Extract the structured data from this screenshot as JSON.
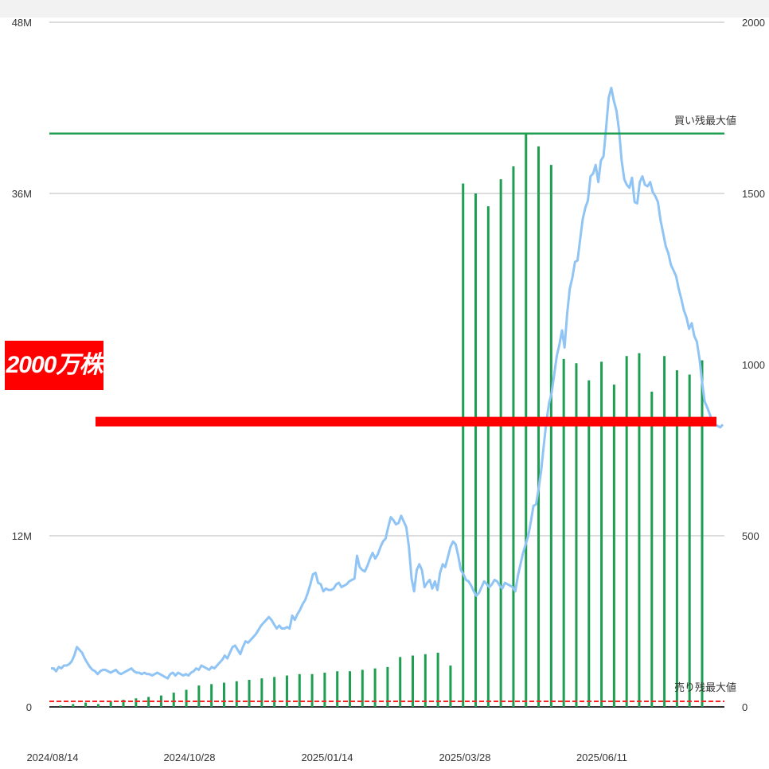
{
  "chart_data": {
    "type": "line",
    "x_ticks": [
      "2024/08/14",
      "2024/10/28",
      "2025/01/14",
      "2025/03/28",
      "2025/06/11"
    ],
    "y_left": {
      "ticks": [
        "0",
        "12M",
        "36M",
        "48M"
      ],
      "tick_values": [
        0,
        12,
        36,
        48
      ],
      "ylim": [
        0,
        48
      ],
      "unit": "M"
    },
    "y_right": {
      "ticks": [
        "0",
        "500",
        "1000",
        "1500",
        "2000"
      ],
      "tick_values": [
        0,
        500,
        1000,
        1500,
        2000
      ],
      "ylim": [
        0,
        2000
      ]
    },
    "grid": true,
    "annotations": {
      "buy_max_label": "買い残最大値",
      "sell_max_label": "売り残最大値",
      "highlight_label": "2000万株",
      "highlight_level_M": 20,
      "buy_max_level_M": 40.2
    },
    "series": [
      {
        "kind": "line",
        "color": "#90c4f4",
        "axis": "left",
        "values": [
          2.7,
          2.7,
          2.5,
          2.8,
          2.7,
          2.9,
          2.9,
          3.0,
          3.2,
          3.6,
          4.2,
          4.0,
          3.8,
          3.4,
          3.1,
          2.8,
          2.6,
          2.5,
          2.3,
          2.5,
          2.6,
          2.6,
          2.5,
          2.4,
          2.5,
          2.6,
          2.4,
          2.3,
          2.4,
          2.5,
          2.6,
          2.7,
          2.5,
          2.4,
          2.4,
          2.3,
          2.4,
          2.3,
          2.3,
          2.2,
          2.3,
          2.4,
          2.3,
          2.2,
          2.1,
          2.0,
          2.3,
          2.4,
          2.2,
          2.4,
          2.3,
          2.2,
          2.3,
          2.2,
          2.4,
          2.5,
          2.7,
          2.6,
          2.9,
          2.8,
          2.7,
          2.6,
          2.8,
          2.7,
          2.9,
          3.1,
          3.3,
          3.6,
          3.4,
          3.8,
          4.2,
          4.3,
          4.0,
          3.7,
          4.2,
          4.6,
          4.5,
          4.7,
          4.9,
          5.1,
          5.4,
          5.7,
          5.9,
          6.1,
          6.3,
          6.1,
          5.8,
          5.5,
          5.7,
          5.5,
          5.5,
          5.6,
          5.5,
          6.4,
          6.1,
          6.5,
          6.8,
          7.2,
          7.5,
          8.0,
          8.6,
          9.3,
          9.4,
          8.7,
          8.6,
          8.1,
          8.3,
          8.2,
          8.2,
          8.3,
          8.6,
          8.7,
          8.4,
          8.5,
          8.6,
          8.8,
          8.9,
          9.0,
          10.6,
          9.8,
          9.6,
          9.5,
          9.9,
          10.4,
          10.8,
          10.4,
          10.7,
          11.2,
          11.6,
          11.8,
          12.6,
          13.3,
          13.1,
          12.8,
          12.9,
          13.4,
          13.0,
          12.6,
          11.2,
          9.0,
          8.1,
          9.6,
          10.0,
          9.6,
          8.4,
          8.7,
          8.9,
          8.3,
          8.8,
          8.2,
          9.4,
          10.0,
          9.8,
          10.5,
          11.2,
          11.6,
          11.4,
          10.6,
          9.6,
          9.3,
          8.9,
          8.8,
          8.5,
          8.1,
          7.8,
          8.0,
          8.4,
          8.8,
          8.6,
          8.4,
          8.6,
          8.9,
          8.8,
          8.5,
          8.3,
          8.7,
          8.6,
          8.5,
          8.4,
          8.1,
          9.2,
          10.0,
          10.8,
          11.4,
          12.0,
          13.0,
          14.1,
          14.2,
          15.3,
          16.6,
          18.4,
          20.0,
          21.3,
          22.0,
          23.3,
          24.6,
          25.4,
          26.4,
          25.2,
          27.6,
          29.3,
          30.1,
          31.2,
          31.3,
          32.8,
          34.2,
          35.0,
          35.5,
          37.2,
          37.4,
          38.0,
          36.8,
          38.3,
          38.6,
          40.6,
          42.7,
          43.4,
          42.5,
          41.8,
          40.4,
          38.3,
          37.0,
          36.6,
          36.4,
          37.1,
          35.4,
          35.3,
          36.8,
          37.2,
          36.6,
          36.5,
          36.8,
          36.1,
          35.8,
          35.4,
          34.1,
          33.2,
          32.3,
          31.8,
          31.0,
          30.6,
          30.2,
          29.3,
          28.6,
          27.8,
          27.3,
          26.5,
          26.9,
          26.0,
          25.6,
          24.4,
          22.8,
          21.4,
          21.0,
          20.5,
          20.0,
          19.8,
          19.7,
          19.6,
          19.8
        ]
      },
      {
        "kind": "bar",
        "color": "#1e9e50",
        "axis": "left",
        "values": [
          0.1,
          0.2,
          0.3,
          0.2,
          0.4,
          0.5,
          0.6,
          0.7,
          0.8,
          1.0,
          1.2,
          1.5,
          1.6,
          1.7,
          1.8,
          1.9,
          2.0,
          2.1,
          2.2,
          2.3,
          2.3,
          2.4,
          2.5,
          2.5,
          2.6,
          2.7,
          2.8,
          3.5,
          3.6,
          3.7,
          3.8,
          2.9,
          36.7,
          36.0,
          35.1,
          37.0,
          37.9,
          40.2,
          39.3,
          38.0,
          24.4,
          24.1,
          22.9,
          24.2,
          22.6,
          24.6,
          24.8,
          22.1,
          24.6,
          23.6,
          23.3,
          24.3
        ]
      }
    ]
  }
}
